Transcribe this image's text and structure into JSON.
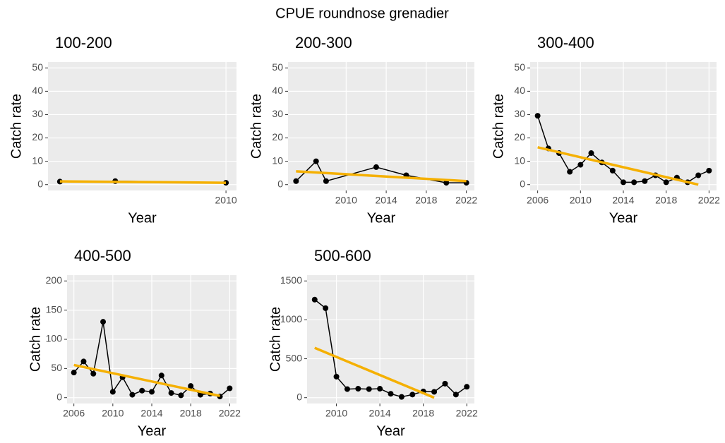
{
  "title": "CPUE roundnose grenadier",
  "chart_data": [
    {
      "type": "line",
      "title": "100-200",
      "x_label": "Year",
      "y_label": "Catch rate",
      "xlim": [
        2003.57,
        2010.38
      ],
      "xticks": [
        2010
      ],
      "ylim": [
        -2.5,
        52.5
      ],
      "yticks": [
        0,
        10,
        20,
        30,
        40,
        50
      ],
      "grid": true,
      "series": [
        {
          "color": "#000000",
          "markers": true,
          "x": [
            2004,
            2006,
            2010
          ],
          "values": [
            1.3,
            1.5,
            0.8
          ]
        },
        {
          "color": "#f5b000",
          "markers": false,
          "x": [
            2004,
            2010
          ],
          "values": [
            1.4,
            0.8
          ]
        }
      ]
    },
    {
      "type": "line",
      "title": "200-300",
      "x_label": "Year",
      "y_label": "Catch rate",
      "xlim": [
        2004.2,
        2022.8
      ],
      "xticks": [
        2010,
        2014,
        2018,
        2022
      ],
      "ylim": [
        -2.5,
        52.5
      ],
      "yticks": [
        0,
        10,
        20,
        30,
        40,
        50
      ],
      "grid": true,
      "series": [
        {
          "color": "#000000",
          "markers": true,
          "x": [
            2005,
            2007,
            2008,
            2013,
            2016,
            2020,
            2022
          ],
          "values": [
            1.5,
            10,
            1.5,
            7.5,
            4,
            0.8,
            0.8
          ]
        },
        {
          "color": "#f5b000",
          "markers": false,
          "x": [
            2005,
            2022
          ],
          "values": [
            5.7,
            1.5
          ]
        }
      ]
    },
    {
      "type": "line",
      "title": "300-400",
      "x_label": "Year",
      "y_label": "Catch rate",
      "xlim": [
        2005.3,
        2022.7
      ],
      "xticks": [
        2006,
        2010,
        2014,
        2018,
        2022
      ],
      "ylim": [
        -2.5,
        52.5
      ],
      "yticks": [
        0,
        10,
        20,
        30,
        40,
        50
      ],
      "grid": true,
      "series": [
        {
          "color": "#000000",
          "markers": true,
          "x": [
            2006,
            2007,
            2008,
            2009,
            2010,
            2011,
            2012,
            2013,
            2014,
            2015,
            2016,
            2017,
            2018,
            2019,
            2020,
            2021,
            2022
          ],
          "values": [
            29.5,
            15.5,
            13.5,
            5.5,
            8.5,
            13.5,
            9.5,
            6,
            1,
            1,
            1.5,
            4,
            1,
            3,
            1,
            4,
            6
          ]
        },
        {
          "color": "#f5b000",
          "markers": false,
          "x": [
            2006,
            2021
          ],
          "values": [
            16,
            0
          ]
        }
      ]
    },
    {
      "type": "line",
      "title": "400-500",
      "x_label": "Year",
      "y_label": "Catch rate",
      "xlim": [
        2005.3,
        2022.7
      ],
      "xticks": [
        2006,
        2010,
        2014,
        2018,
        2022
      ],
      "ylim": [
        -10,
        210
      ],
      "yticks": [
        0,
        50,
        100,
        150,
        200
      ],
      "grid": true,
      "series": [
        {
          "color": "#000000",
          "markers": true,
          "x": [
            2006,
            2007,
            2008,
            2009,
            2010,
            2011,
            2012,
            2013,
            2014,
            2015,
            2016,
            2017,
            2018,
            2019,
            2020,
            2021,
            2022
          ],
          "values": [
            43,
            62,
            41,
            130,
            10,
            35,
            5,
            12,
            10,
            38,
            8,
            4,
            20,
            5,
            7,
            2,
            16
          ]
        },
        {
          "color": "#f5b000",
          "markers": false,
          "x": [
            2006,
            2021
          ],
          "values": [
            56,
            3
          ]
        }
      ]
    },
    {
      "type": "line",
      "title": "500-600",
      "x_label": "Year",
      "y_label": "Catch rate",
      "xlim": [
        2007.3,
        2022.7
      ],
      "xticks": [
        2010,
        2014,
        2018,
        2022
      ],
      "ylim": [
        -75,
        1575
      ],
      "yticks": [
        0,
        500,
        1000,
        1500
      ],
      "grid": true,
      "series": [
        {
          "color": "#000000",
          "markers": true,
          "x": [
            2008,
            2009,
            2010,
            2011,
            2012,
            2013,
            2014,
            2015,
            2016,
            2017,
            2018,
            2019,
            2020,
            2021,
            2022
          ],
          "values": [
            1260,
            1150,
            270,
            110,
            115,
            110,
            115,
            50,
            10,
            40,
            80,
            75,
            180,
            40,
            140
          ]
        },
        {
          "color": "#f5b000",
          "markers": false,
          "x": [
            2008,
            2019
          ],
          "values": [
            640,
            0
          ]
        }
      ]
    }
  ]
}
